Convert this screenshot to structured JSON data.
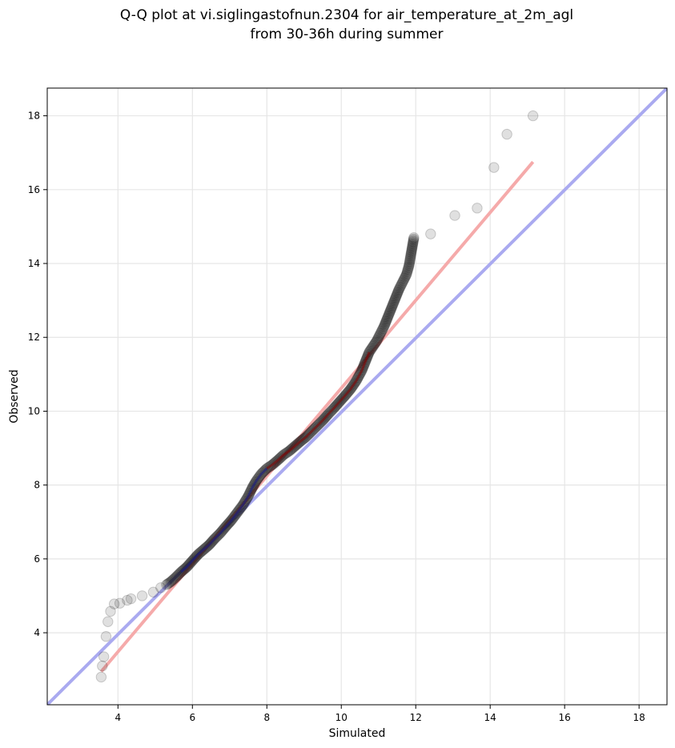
{
  "chart_data": {
    "type": "scatter",
    "title": [
      "Q-Q plot at vi.siglingastofnun.2304 for air_temperature_at_2m_agl",
      "from 30-36h during summer"
    ],
    "xlabel": "Simulated",
    "ylabel": "Observed",
    "xlim": [
      2.1,
      18.75
    ],
    "ylim": [
      2.05,
      18.75
    ],
    "xticks": [
      4,
      6,
      8,
      10,
      12,
      14,
      16,
      18
    ],
    "yticks": [
      4,
      6,
      8,
      10,
      12,
      14,
      16,
      18
    ],
    "grid": true,
    "reference_lines": [
      {
        "label": "1:1",
        "color": "#aaaaf0",
        "points": [
          [
            2.1,
            2.05
          ],
          [
            18.75,
            18.75
          ]
        ]
      },
      {
        "label": "fit",
        "color": "#f5aaaa",
        "points": [
          [
            3.55,
            2.95
          ],
          [
            15.15,
            16.75
          ]
        ]
      }
    ],
    "quantiles": [
      [
        3.55,
        2.8
      ],
      [
        3.58,
        3.1
      ],
      [
        3.62,
        3.35
      ],
      [
        3.68,
        3.9
      ],
      [
        3.73,
        4.3
      ],
      [
        3.8,
        4.58
      ],
      [
        3.9,
        4.78
      ],
      [
        4.05,
        4.8
      ],
      [
        4.25,
        4.88
      ],
      [
        4.35,
        4.92
      ],
      [
        4.65,
        5.0
      ],
      [
        4.95,
        5.1
      ],
      [
        5.15,
        5.22
      ],
      [
        5.3,
        5.3
      ],
      [
        5.42,
        5.38
      ],
      [
        5.55,
        5.5
      ],
      [
        5.7,
        5.65
      ],
      [
        5.85,
        5.78
      ],
      [
        6.0,
        5.95
      ],
      [
        6.15,
        6.12
      ],
      [
        6.3,
        6.25
      ],
      [
        6.45,
        6.38
      ],
      [
        6.6,
        6.55
      ],
      [
        6.75,
        6.7
      ],
      [
        6.9,
        6.88
      ],
      [
        7.05,
        7.05
      ],
      [
        7.2,
        7.25
      ],
      [
        7.35,
        7.45
      ],
      [
        7.5,
        7.7
      ],
      [
        7.62,
        7.95
      ],
      [
        7.72,
        8.12
      ],
      [
        7.85,
        8.3
      ],
      [
        8.0,
        8.45
      ],
      [
        8.15,
        8.55
      ],
      [
        8.3,
        8.68
      ],
      [
        8.45,
        8.82
      ],
      [
        8.6,
        8.92
      ],
      [
        8.75,
        9.05
      ],
      [
        8.9,
        9.18
      ],
      [
        9.05,
        9.3
      ],
      [
        9.2,
        9.45
      ],
      [
        9.35,
        9.6
      ],
      [
        9.5,
        9.75
      ],
      [
        9.65,
        9.92
      ],
      [
        9.8,
        10.08
      ],
      [
        9.95,
        10.25
      ],
      [
        10.1,
        10.42
      ],
      [
        10.25,
        10.6
      ],
      [
        10.4,
        10.82
      ],
      [
        10.55,
        11.1
      ],
      [
        10.65,
        11.35
      ],
      [
        10.75,
        11.6
      ],
      [
        10.85,
        11.75
      ],
      [
        10.95,
        11.9
      ],
      [
        11.05,
        12.1
      ],
      [
        11.15,
        12.3
      ],
      [
        11.25,
        12.55
      ],
      [
        11.35,
        12.8
      ],
      [
        11.45,
        13.05
      ],
      [
        11.55,
        13.3
      ],
      [
        11.65,
        13.5
      ],
      [
        11.75,
        13.7
      ],
      [
        11.82,
        13.95
      ],
      [
        11.88,
        14.3
      ],
      [
        11.95,
        14.7
      ],
      [
        12.4,
        14.8
      ],
      [
        13.05,
        15.3
      ],
      [
        13.65,
        15.5
      ],
      [
        14.1,
        16.6
      ],
      [
        14.45,
        17.5
      ],
      [
        15.15,
        18.0
      ]
    ]
  }
}
